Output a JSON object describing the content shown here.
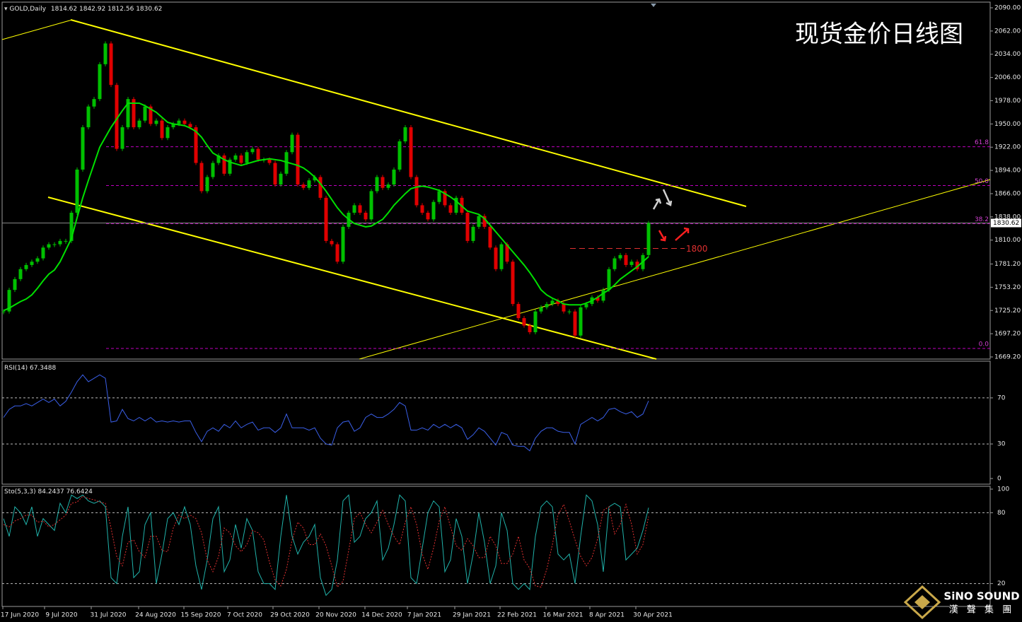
{
  "header": {
    "symbol": "GOLD,Daily",
    "open": 1814.62,
    "high": 1842.92,
    "low": 1812.56,
    "close": 1830.62
  },
  "title": "现货金价日线图",
  "logo": {
    "name": "SiNO SOUND",
    "subtitle": "漢 聲 集 團"
  },
  "date_labels": [
    "17 Jun 2020",
    "9 Jul 2020",
    "31 Jul 2020",
    "24 Aug 2020",
    "15 Sep 2020",
    "7 Oct 2020",
    "29 Oct 2020",
    "20 Nov 2020",
    "14 Dec 2020",
    "7 Jan 2021",
    "29 Jan 2021",
    "22 Feb 2021",
    "16 Mar 2021",
    "8 Apr 2021",
    "30 Apr 2021"
  ],
  "chart_data": [
    {
      "type": "candlestick",
      "up_color": "#00c000",
      "down_color": "#e00000",
      "ma_color": "#00e000",
      "values": [
        1724,
        1750,
        1763,
        1775,
        1780,
        1784,
        1788,
        1801,
        1805,
        1805,
        1809,
        1809,
        1843,
        1895,
        1946,
        1971,
        1980,
        2022,
        2047,
        1997,
        1920,
        1946,
        1980,
        1946,
        1954,
        1971,
        1950,
        1954,
        1933,
        1946,
        1950,
        1954,
        1950,
        1946,
        1903,
        1869,
        1886,
        1903,
        1912,
        1890,
        1907,
        1912,
        1903,
        1916,
        1920,
        1907,
        1907,
        1903,
        1877,
        1890,
        1916,
        1937,
        1877,
        1873,
        1882,
        1886,
        1861,
        1809,
        1805,
        1784,
        1826,
        1843,
        1852,
        1843,
        1835,
        1869,
        1886,
        1873,
        1877,
        1895,
        1929,
        1946,
        1886,
        1852,
        1843,
        1835,
        1856,
        1869,
        1852,
        1843,
        1861,
        1843,
        1809,
        1826,
        1839,
        1826,
        1801,
        1775,
        1805,
        1784,
        1733,
        1716,
        1707,
        1699,
        1724,
        1729,
        1733,
        1737,
        1733,
        1724,
        1724,
        1695,
        1729,
        1733,
        1741,
        1737,
        1750,
        1775,
        1788,
        1792,
        1780,
        1784,
        1775,
        1792,
        1830.62
      ],
      "ma": [
        1725,
        1728,
        1732,
        1736,
        1739,
        1744,
        1752,
        1761,
        1769,
        1774,
        1784,
        1798,
        1812,
        1837,
        1861,
        1882,
        1902,
        1922,
        1934,
        1946,
        1956,
        1966,
        1975,
        1975,
        1975,
        1972,
        1968,
        1964,
        1958,
        1952,
        1950,
        1949,
        1948,
        1945,
        1941,
        1934,
        1924,
        1915,
        1911,
        1907,
        1904,
        1902,
        1900,
        1902,
        1904,
        1906,
        1907,
        1908,
        1907,
        1906,
        1904,
        1902,
        1900,
        1897,
        1892,
        1886,
        1878,
        1869,
        1859,
        1849,
        1841,
        1835,
        1830,
        1828,
        1826,
        1827,
        1831,
        1835,
        1843,
        1852,
        1859,
        1866,
        1872,
        1874,
        1875,
        1874,
        1872,
        1870,
        1866,
        1862,
        1857,
        1851,
        1845,
        1843,
        1841,
        1836,
        1828,
        1820,
        1812,
        1804,
        1796,
        1788,
        1780,
        1771,
        1761,
        1750,
        1744,
        1740,
        1737,
        1733,
        1732,
        1732,
        1732,
        1734,
        1737,
        1741,
        1746,
        1750,
        1756,
        1763,
        1768,
        1773,
        1778,
        1784,
        1790
      ],
      "ylim": [
        1669.2,
        2090
      ],
      "yticks": [
        {
          "value": 1669.2,
          "label": "1669.20"
        },
        {
          "value": 1697.2,
          "label": "1697.20"
        },
        {
          "value": 1725.2,
          "label": "1725.20"
        },
        {
          "value": 1753.2,
          "label": "1753.20"
        },
        {
          "value": 1781.2,
          "label": "1781.20"
        },
        {
          "value": 1810,
          "label": "1810.00"
        },
        {
          "value": 1838,
          "label": "1838.00"
        },
        {
          "value": 1866,
          "label": "1866.00"
        },
        {
          "value": 1894,
          "label": "1894.00"
        },
        {
          "value": 1922,
          "label": "1922.00"
        },
        {
          "value": 1950,
          "label": "1950.00"
        },
        {
          "value": 1978,
          "label": "1978.00"
        },
        {
          "value": 2006,
          "label": "2006.00"
        },
        {
          "value": 2034,
          "label": "2034.00"
        },
        {
          "value": 2062,
          "label": "2062.00"
        },
        {
          "value": 2090,
          "label": "2090.00"
        }
      ],
      "fib_levels": [
        {
          "label": "61.8",
          "value": 1922.5
        },
        {
          "label": "50.0",
          "value": 1875.8
        },
        {
          "label": "38.2",
          "value": 1829.9
        },
        {
          "label": "0.0",
          "value": 1679.4
        }
      ],
      "level": 1800
    },
    {
      "type": "line",
      "name": "RSI(14)",
      "current": 67.3488,
      "ylim": [
        0,
        100
      ],
      "yticks": [
        70,
        30,
        0
      ],
      "series": [
        {
          "color": "#3a5fe8",
          "values": [
            53,
            60,
            63,
            63,
            65,
            63,
            66,
            69,
            66,
            69,
            63,
            67,
            75,
            84,
            90,
            84,
            87,
            90,
            87,
            49,
            50,
            60,
            52,
            50,
            53,
            50,
            53,
            49,
            50,
            49,
            50,
            49,
            50,
            50,
            40,
            32,
            41,
            44,
            41,
            47,
            44,
            50,
            44,
            47,
            49,
            42,
            44,
            44,
            40,
            44,
            56,
            44,
            44,
            44,
            42,
            44,
            35,
            30,
            29,
            44,
            49,
            50,
            41,
            44,
            53,
            56,
            53,
            53,
            56,
            60,
            66,
            63,
            42,
            42,
            44,
            42,
            47,
            44,
            47,
            44,
            47,
            44,
            34,
            38,
            44,
            41,
            35,
            29,
            40,
            38,
            29,
            28,
            28,
            24,
            35,
            41,
            44,
            44,
            41,
            40,
            40,
            30,
            47,
            50,
            53,
            50,
            53,
            60,
            61,
            58,
            56,
            58,
            53,
            56,
            67.3488
          ]
        }
      ]
    },
    {
      "type": "line",
      "name": "Sto(5,3,3)",
      "current": [
        84.2437,
        76.6424
      ],
      "ylim": [
        0,
        100
      ],
      "yticks": [
        100,
        80,
        20
      ],
      "series": [
        {
          "color": "#20b2aa",
          "values": [
            75,
            60,
            85,
            80,
            70,
            85,
            60,
            75,
            70,
            65,
            88,
            80,
            95,
            92,
            95,
            90,
            88,
            90,
            85,
            25,
            20,
            60,
            85,
            25,
            30,
            70,
            80,
            20,
            45,
            75,
            80,
            70,
            85,
            70,
            35,
            15,
            40,
            75,
            85,
            30,
            40,
            70,
            50,
            75,
            65,
            30,
            20,
            20,
            15,
            60,
            95,
            60,
            45,
            55,
            60,
            70,
            25,
            10,
            15,
            40,
            90,
            95,
            55,
            60,
            75,
            80,
            90,
            40,
            50,
            70,
            95,
            90,
            25,
            20,
            50,
            80,
            90,
            85,
            30,
            40,
            75,
            60,
            20,
            45,
            80,
            55,
            20,
            35,
            80,
            65,
            20,
            15,
            20,
            15,
            60,
            85,
            90,
            85,
            45,
            40,
            45,
            20,
            60,
            95,
            90,
            70,
            30,
            85,
            88,
            85,
            40,
            45,
            50,
            65,
            84.2437
          ]
        },
        {
          "color": "#e03030",
          "dashed": true,
          "values": [
            70,
            68,
            73,
            75,
            78,
            78,
            72,
            73,
            68,
            70,
            74,
            78,
            88,
            89,
            94,
            92,
            91,
            89,
            88,
            67,
            43,
            35,
            55,
            57,
            47,
            42,
            60,
            60,
            48,
            47,
            67,
            78,
            75,
            78,
            75,
            63,
            40,
            30,
            43,
            67,
            63,
            52,
            47,
            53,
            65,
            63,
            57,
            38,
            23,
            18,
            32,
            57,
            72,
            67,
            53,
            53,
            62,
            52,
            35,
            17,
            22,
            48,
            75,
            80,
            70,
            63,
            72,
            82,
            70,
            60,
            53,
            72,
            85,
            70,
            45,
            32,
            50,
            73,
            85,
            68,
            52,
            48,
            58,
            52,
            42,
            42,
            60,
            52,
            37,
            37,
            45,
            60,
            40,
            33,
            18,
            17,
            32,
            53,
            78,
            87,
            73,
            57,
            43,
            35,
            42,
            58,
            82,
            85,
            62,
            70,
            87,
            70,
            45,
            53,
            76.6424
          ]
        }
      ]
    }
  ]
}
